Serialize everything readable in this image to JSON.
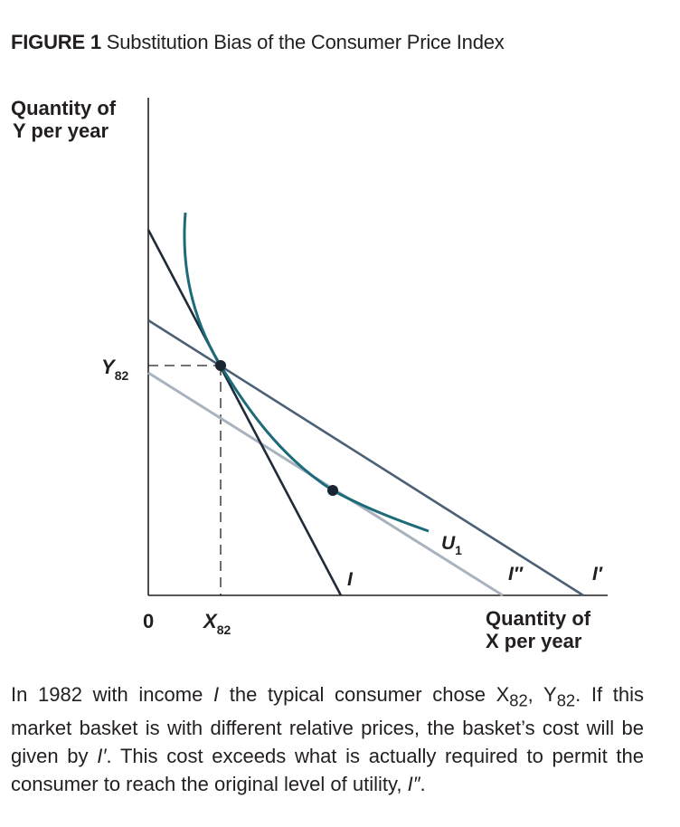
{
  "figure": {
    "number": "FIGURE 1",
    "title": "Substitution Bias of the Consumer Price Index"
  },
  "axes": {
    "y_label_line1": "Quantity of",
    "y_label_line2": "Y per year",
    "x_label_line1": "Quantity of",
    "x_label_line2": "X per year",
    "origin": "0",
    "y_tick_main": "Y",
    "y_tick_sub": "82",
    "x_tick_main": "X",
    "x_tick_sub": "82"
  },
  "curves": {
    "budget_i": "I",
    "budget_i_double_prime": "I″",
    "budget_i_prime": "I′",
    "indifference_main": "U",
    "indifference_sub": "1"
  },
  "colors": {
    "budget_i": "#1f2b3a",
    "budget_i_prime": "#4c6075",
    "budget_i_double_prime": "#a8b3bd",
    "indifference": "#1d6b78",
    "axis": "#231f20"
  },
  "caption": {
    "part1": "In 1982 with income ",
    "income": "I",
    "part2": " the typical consumer chose X",
    "x_sub": "82",
    "part3": ", Y",
    "y_sub": "82",
    "part4": ". If this market basket is with different relative prices, the basket’s cost will be given by ",
    "cost_label": "I′",
    "part5": ". This cost exceeds what is actually required to permit the consumer to reach the original level of utility, ",
    "utility_label": "I″",
    "part6": "."
  }
}
